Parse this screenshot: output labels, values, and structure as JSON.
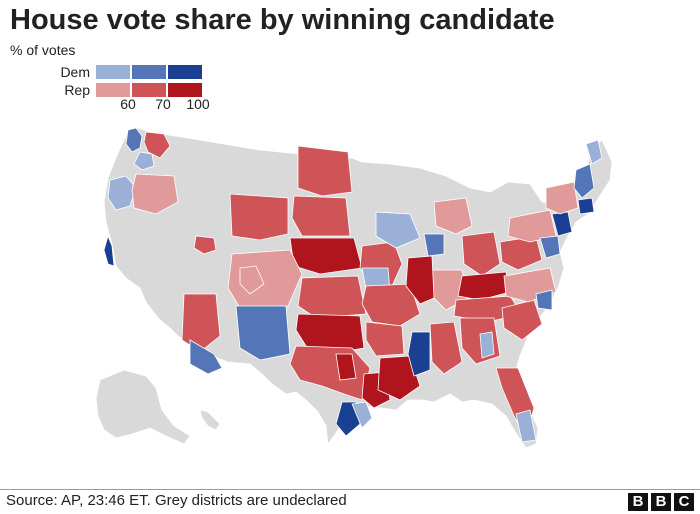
{
  "title": "House vote share by winning candidate",
  "legend": {
    "subtitle": "% of votes",
    "rows": [
      {
        "label": "Dem",
        "colors": [
          "#9bb0d6",
          "#5476b8",
          "#1a3f93"
        ]
      },
      {
        "label": "Rep",
        "colors": [
          "#e09a9a",
          "#cf5457",
          "#b0141c"
        ]
      }
    ],
    "ticks": [
      "60",
      "70",
      "100"
    ]
  },
  "footer": {
    "source": "Source: AP, 23:46 ET. Grey districts are undeclared",
    "logo_letters": [
      "B",
      "B",
      "C"
    ]
  },
  "colors": {
    "undeclared": "#d9d9d9",
    "border": "#ffffff"
  }
}
